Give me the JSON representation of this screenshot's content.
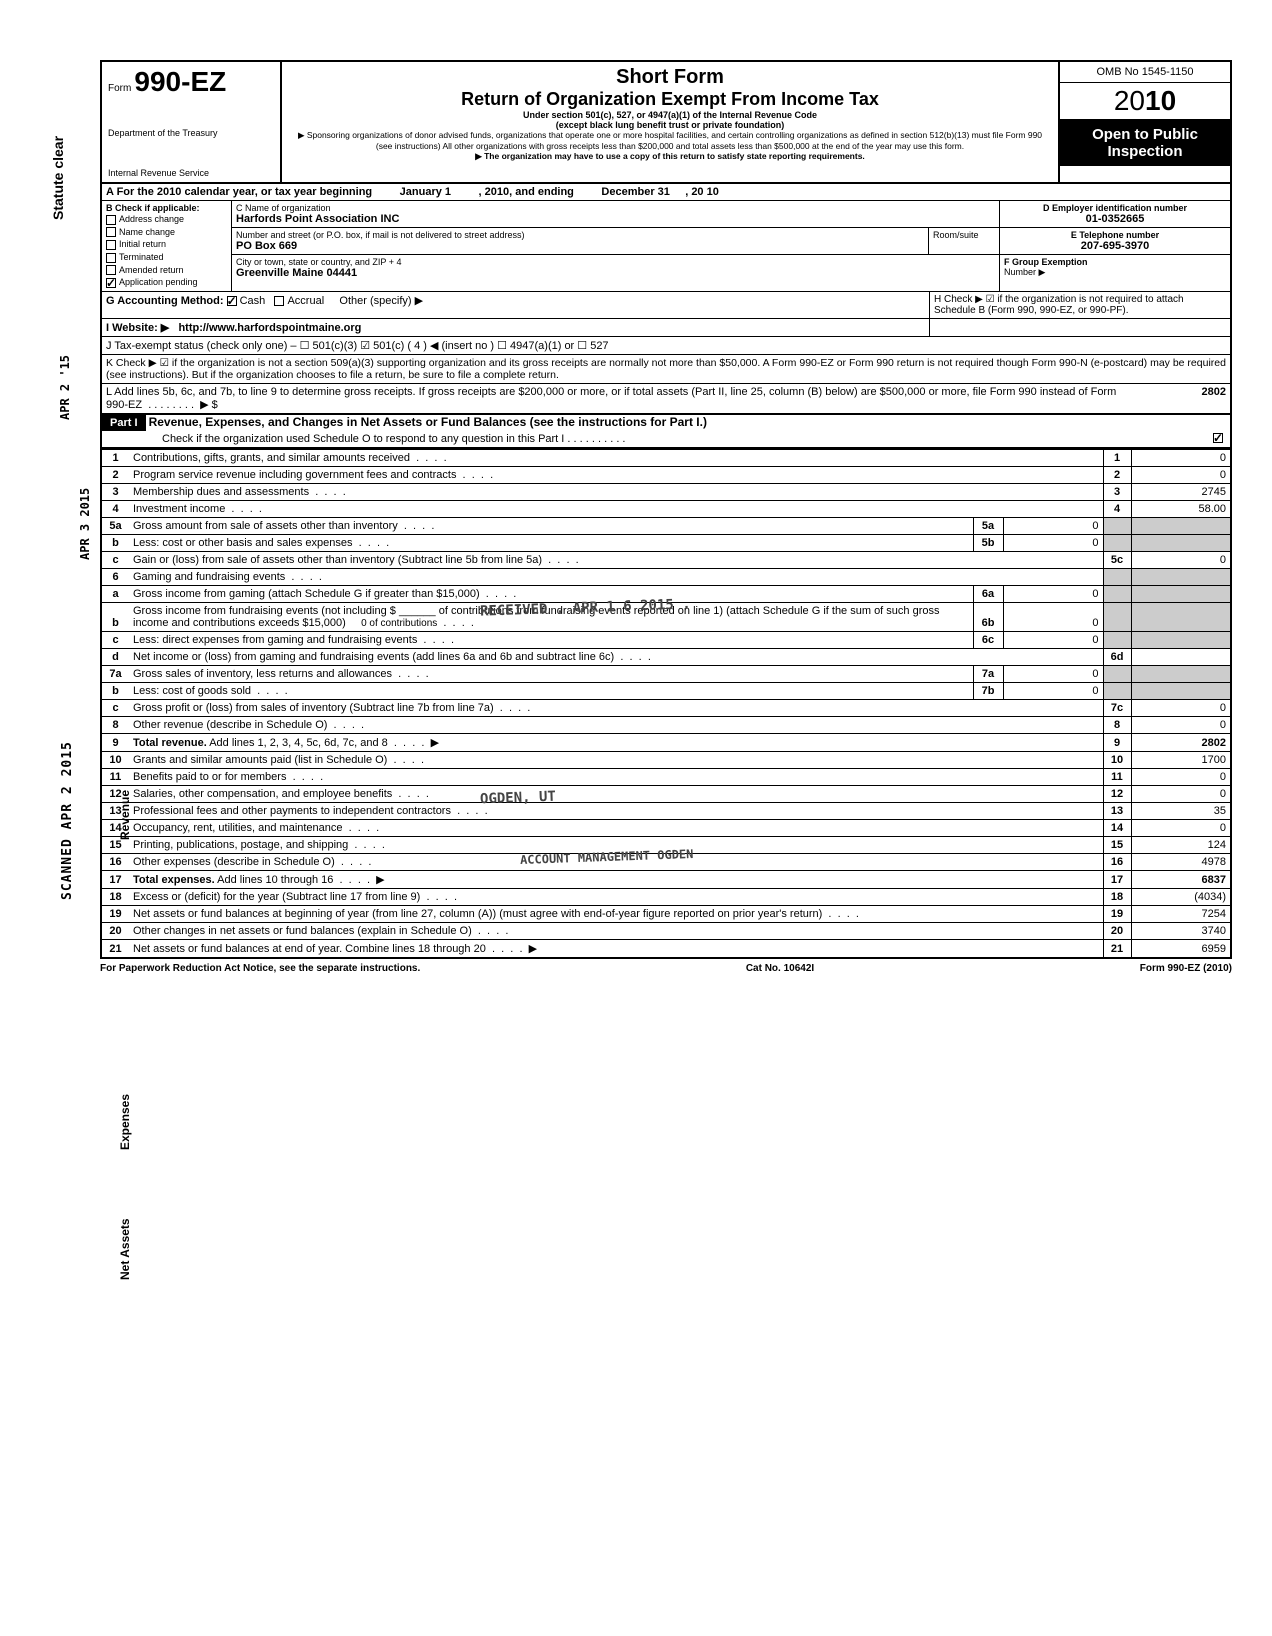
{
  "sideText": {
    "statute": "Statute clear",
    "date1": "APR 2 '15",
    "date2": "APR 3 2015",
    "scanned": "SCANNED APR 2 2015"
  },
  "header": {
    "formLabel": "Form",
    "formNumber": "990-EZ",
    "dept": "Department of the Treasury",
    "irs": "Internal Revenue Service",
    "title1": "Short Form",
    "title2": "Return of Organization Exempt From Income Tax",
    "sub1": "Under section 501(c), 527, or 4947(a)(1) of the Internal Revenue Code",
    "sub2": "(except black lung benefit trust or private foundation)",
    "sub3": "▶ Sponsoring organizations of donor advised funds, organizations that operate one or more hospital facilities, and certain controlling organizations as defined in section 512(b)(13) must file Form 990 (see instructions) All other organizations with gross receipts less than $200,000 and total assets less than $500,000 at the end of the year may use this form.",
    "sub4": "▶ The organization may have to use a copy of this return to satisfy state reporting requirements.",
    "omb": "OMB No 1545-1150",
    "yearPrefix": "20",
    "yearBold": "10",
    "open": "Open to Public",
    "inspection": "Inspection"
  },
  "lineA": {
    "label": "A For the 2010 calendar year, or tax year beginning",
    "mid": "January 1",
    "mid2": ", 2010, and ending",
    "end": "December 31",
    "end2": ", 20   10"
  },
  "sectB": {
    "hdr": "B  Check if applicable:",
    "items": [
      "Address change",
      "Name change",
      "Initial return",
      "Terminated",
      "Amended return",
      "Application pending"
    ]
  },
  "sectC": {
    "hdr": "C Name of organization",
    "name": "Harfords Point Association INC",
    "addrHdr": "Number and street (or P.O. box, if mail is not delivered to street address)",
    "addr": "PO Box 669",
    "room": "Room/suite",
    "cityHdr": "City or town, state or country, and ZIP + 4",
    "city": "Greenville Maine  04441"
  },
  "sectD": {
    "hdr": "D Employer identification number",
    "val": "01-0352665"
  },
  "sectE": {
    "hdr": "E Telephone number",
    "val": "207-695-3970"
  },
  "sectF": {
    "hdr": "F Group Exemption",
    "hdr2": "Number ▶"
  },
  "lineG": {
    "label": "G Accounting Method:",
    "opt1": "Cash",
    "opt2": "Accrual",
    "other": "Other (specify) ▶"
  },
  "lineH": "H Check ▶ ☑ if the organization is not required to attach Schedule B (Form 990, 990-EZ, or 990-PF).",
  "lineI": {
    "label": "I   Website: ▶",
    "val": "http://www.harfordspointmaine.org"
  },
  "lineJ": "J Tax-exempt status (check only one) – ☐ 501(c)(3)   ☑ 501(c) (  4  ) ◀ (insert no ) ☐ 4947(a)(1) or    ☐ 527",
  "lineK": "K Check ▶  ☑   if the organization is not a section 509(a)(3) supporting organization and its gross receipts are normally not more than $50,000. A Form 990-EZ or Form 990 return is not required though Form 990-N (e-postcard) may be required (see instructions). But if the organization chooses to file a return, be sure to file a complete return.",
  "lineL": {
    "text": "L Add lines 5b, 6c, and 7b, to line 9 to determine gross receipts. If gross receipts are $200,000 or more, or if total assets (Part II, line 25, column (B) below) are $500,000 or more, file Form 990 instead of Form 990-EZ",
    "arrow": "▶ $",
    "val": "2802"
  },
  "part1": {
    "label": "Part I",
    "title": "Revenue, Expenses, and Changes in Net Assets or Fund Balances (see the instructions for Part I.)",
    "check": "Check if the organization used Schedule O to respond to any question in this Part I"
  },
  "vertLabels": {
    "revenue": "Revenue",
    "expenses": "Expenses",
    "netassets": "Net Assets"
  },
  "lines": [
    {
      "n": "1",
      "d": "Contributions, gifts, grants, and similar amounts received",
      "rn": "1",
      "v": "0"
    },
    {
      "n": "2",
      "d": "Program service revenue including government fees and contracts",
      "rn": "2",
      "v": "0"
    },
    {
      "n": "3",
      "d": "Membership dues and assessments",
      "rn": "3",
      "v": "2745"
    },
    {
      "n": "4",
      "d": "Investment income",
      "rn": "4",
      "v": "58.00"
    },
    {
      "n": "5a",
      "d": "Gross amount from sale of assets other than inventory",
      "sn": "5a",
      "sv": "0"
    },
    {
      "n": "b",
      "d": "Less: cost or other basis and sales expenses",
      "sn": "5b",
      "sv": "0"
    },
    {
      "n": "c",
      "d": "Gain or (loss) from sale of assets other than inventory (Subtract line 5b from line 5a)",
      "rn": "5c",
      "v": "0"
    },
    {
      "n": "6",
      "d": "Gaming and fundraising events"
    },
    {
      "n": "a",
      "d": "Gross income from gaming (attach Schedule G if greater than $15,000)",
      "sn": "6a",
      "sv": "0"
    },
    {
      "n": "b",
      "d": "Gross income from fundraising events (not including $ ______ of contributions from fundraising events reported on line 1) (attach Schedule G if the sum of such gross income and contributions exceeds $15,000)",
      "sn": "6b",
      "sv": "0",
      "extra": "0 of contributions"
    },
    {
      "n": "c",
      "d": "Less: direct expenses from gaming and fundraising events",
      "sn": "6c",
      "sv": "0"
    },
    {
      "n": "d",
      "d": "Net income or (loss) from gaming and fundraising events (add lines 6a and 6b and subtract line 6c)",
      "rn": "6d",
      "v": ""
    },
    {
      "n": "7a",
      "d": "Gross sales of inventory, less returns and allowances",
      "sn": "7a",
      "sv": "0"
    },
    {
      "n": "b",
      "d": "Less: cost of goods sold",
      "sn": "7b",
      "sv": "0"
    },
    {
      "n": "c",
      "d": "Gross profit or (loss) from sales of inventory (Subtract line 7b from line 7a)",
      "rn": "7c",
      "v": "0"
    },
    {
      "n": "8",
      "d": "Other revenue (describe in Schedule O)",
      "rn": "8",
      "v": "0"
    },
    {
      "n": "9",
      "d": "Total revenue. Add lines 1, 2, 3, 4, 5c, 6d, 7c, and 8",
      "rn": "9",
      "v": "2802",
      "bold": true,
      "arrow": true
    },
    {
      "n": "10",
      "d": "Grants and similar amounts paid (list in Schedule O)",
      "rn": "10",
      "v": "1700"
    },
    {
      "n": "11",
      "d": "Benefits paid to or for members",
      "rn": "11",
      "v": "0"
    },
    {
      "n": "12",
      "d": "Salaries, other compensation, and employee benefits",
      "rn": "12",
      "v": "0"
    },
    {
      "n": "13",
      "d": "Professional fees and other payments to independent contractors",
      "rn": "13",
      "v": "35"
    },
    {
      "n": "14",
      "d": "Occupancy, rent, utilities, and maintenance",
      "rn": "14",
      "v": "0"
    },
    {
      "n": "15",
      "d": "Printing, publications, postage, and shipping",
      "rn": "15",
      "v": "124"
    },
    {
      "n": "16",
      "d": "Other expenses (describe in Schedule O)",
      "rn": "16",
      "v": "4978"
    },
    {
      "n": "17",
      "d": "Total expenses. Add lines 10 through 16",
      "rn": "17",
      "v": "6837",
      "bold": true,
      "arrow": true
    },
    {
      "n": "18",
      "d": "Excess or (deficit) for the year (Subtract line 17 from line 9)",
      "rn": "18",
      "v": "(4034)"
    },
    {
      "n": "19",
      "d": "Net assets or fund balances at beginning of year (from line 27, column (A)) (must agree with end-of-year figure reported on prior year's return)",
      "rn": "19",
      "v": "7254"
    },
    {
      "n": "20",
      "d": "Other changes in net assets or fund balances (explain in Schedule O)",
      "rn": "20",
      "v": "3740"
    },
    {
      "n": "21",
      "d": "Net assets or fund balances at end of year. Combine lines 18 through 20",
      "rn": "21",
      "v": "6959",
      "arrow": true
    }
  ],
  "stamps": {
    "s1": "RECEIVED\n. APR 1 6 2015 .",
    "s2": "OGDEN, UT",
    "s3": "ACCOUNT MANAGEMENT\nOGDEN"
  },
  "footer": {
    "left": "For Paperwork Reduction Act Notice, see the separate instructions.",
    "mid": "Cat  No. 10642I",
    "right": "Form 990-EZ (2010)"
  }
}
